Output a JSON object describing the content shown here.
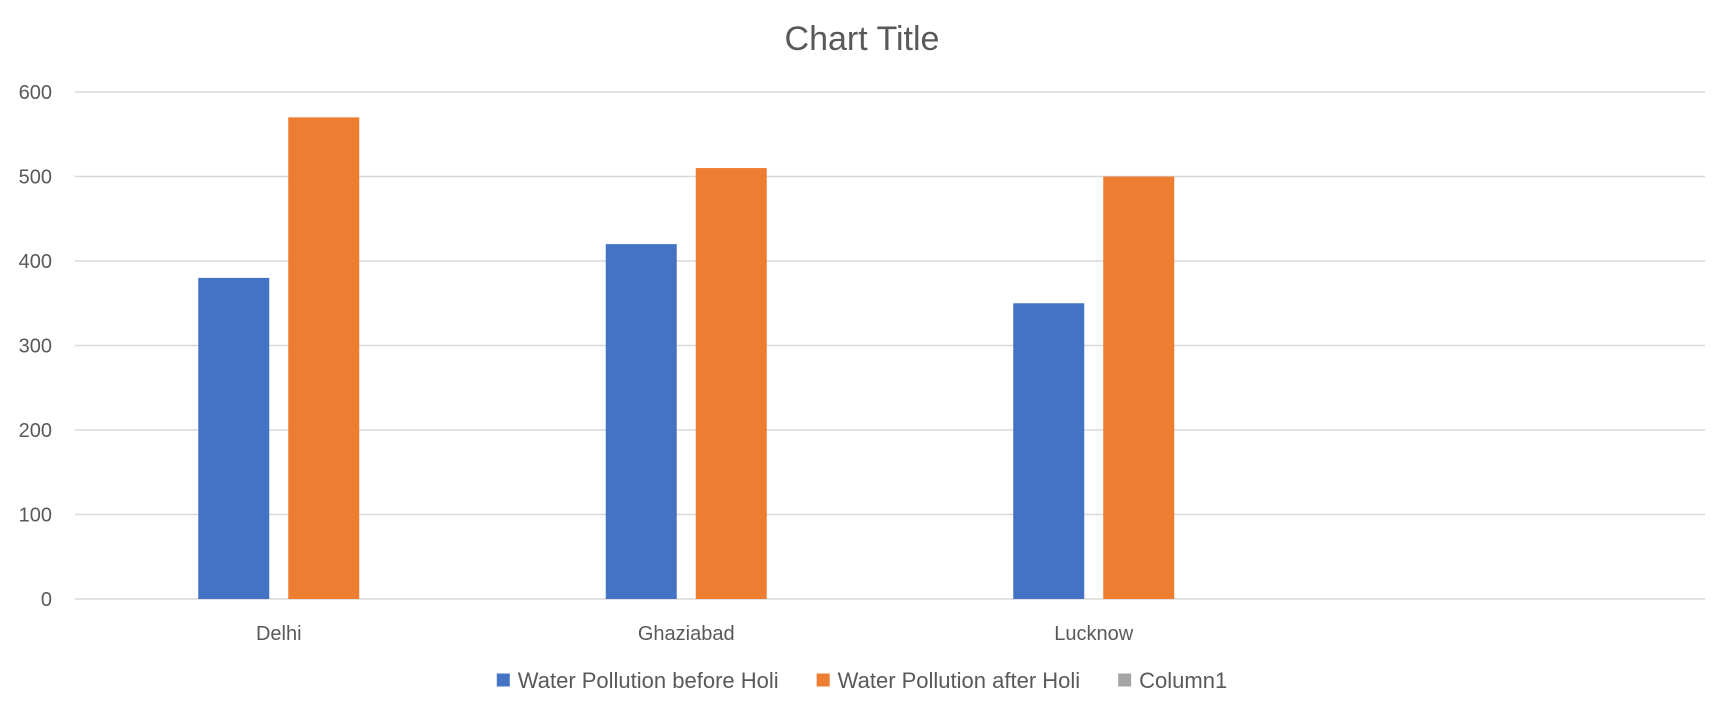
{
  "chart_data": {
    "type": "bar",
    "title": "Chart Title",
    "xlabel": "",
    "ylabel": "",
    "categories": [
      "Delhi",
      "Ghaziabad",
      "Lucknow",
      ""
    ],
    "series": [
      {
        "name": "Water Pollution before Holi",
        "values": [
          380,
          420,
          350,
          null
        ],
        "color": "#4472C4"
      },
      {
        "name": "Water Pollution after Holi",
        "values": [
          570,
          510,
          500,
          null
        ],
        "color": "#ED7D31"
      },
      {
        "name": "Column1",
        "values": [
          null,
          null,
          null,
          null
        ],
        "color": "#A5A5A5"
      }
    ],
    "ylim": [
      0,
      600
    ],
    "yticks": [
      0,
      100,
      200,
      300,
      400,
      500,
      600
    ],
    "grid": true,
    "legend_position": "bottom"
  }
}
